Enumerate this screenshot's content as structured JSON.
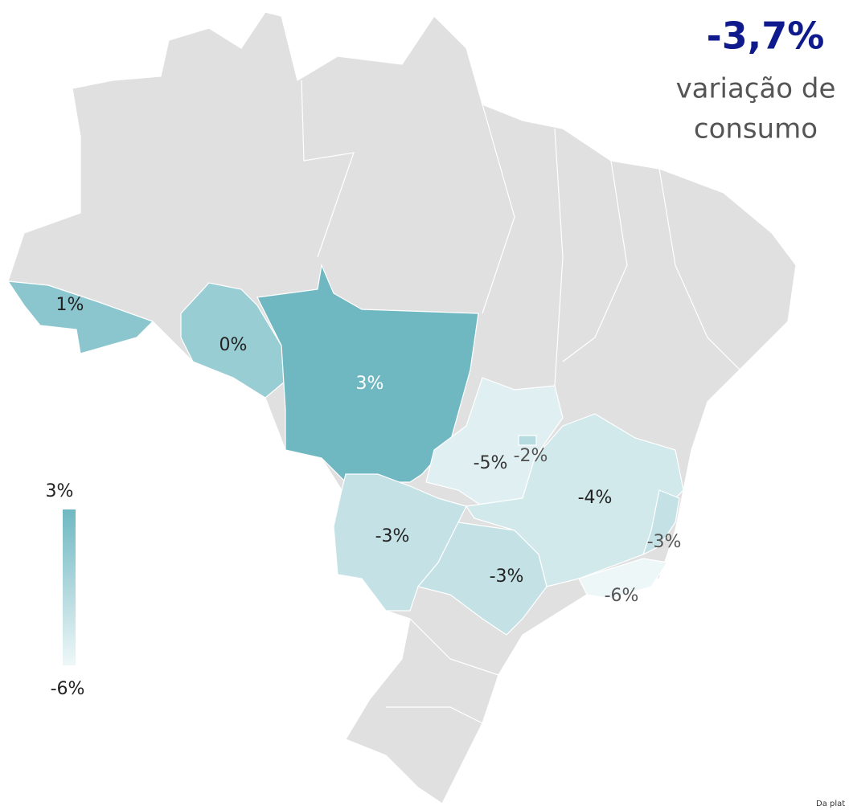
{
  "headline": "-3,7%",
  "subtitle_lines": [
    "variação de",
    "consumo"
  ],
  "legend": {
    "max": {
      "value": 3,
      "label": "3%"
    },
    "min": {
      "value": -6,
      "label": "-6%"
    },
    "color_max": "#6fb8c2",
    "color_min": "#eef7f8"
  },
  "regions": [
    {
      "label": "1%",
      "value": 1,
      "label_color": "#222222"
    },
    {
      "label": "0%",
      "value": 0,
      "label_color": "#222222"
    },
    {
      "label": "3%",
      "value": 3,
      "label_color": "#ffffff"
    },
    {
      "label": "-5%",
      "value": -5,
      "label_color": "#333333"
    },
    {
      "label": "-2%",
      "value": -2,
      "label_color": "#555555"
    },
    {
      "label": "-4%",
      "value": -4,
      "label_color": "#222222"
    },
    {
      "label": "-3%",
      "value": -3,
      "label_color": "#222222"
    },
    {
      "label": "-3%",
      "value": -3,
      "label_color": "#222222"
    },
    {
      "label": "-3%",
      "value": -3,
      "label_color": "#555555"
    },
    {
      "label": "-6%",
      "value": -6,
      "label_color": "#555555"
    }
  ],
  "footer": "Da plat"
}
